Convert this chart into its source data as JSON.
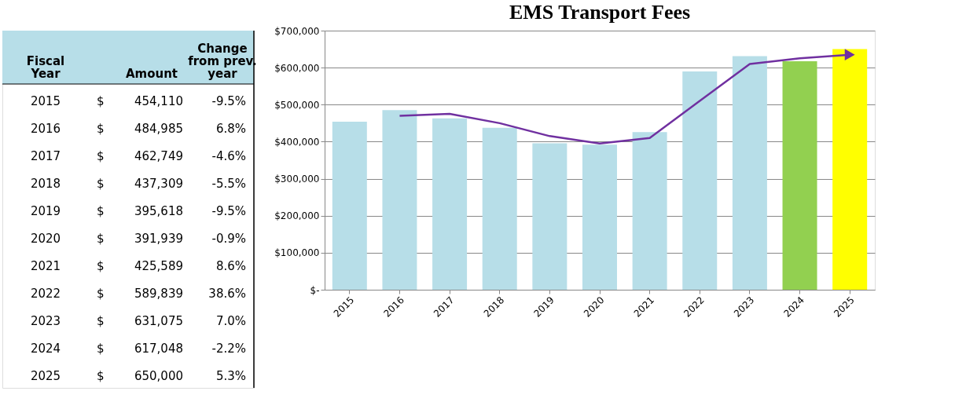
{
  "chart_data": {
    "type": "bar",
    "title": "EMS Transport Fees",
    "categories": [
      "2015",
      "2016",
      "2017",
      "2018",
      "2019",
      "2020",
      "2021",
      "2022",
      "2023",
      "2024",
      "2025"
    ],
    "series": [
      {
        "type": "bar",
        "colors": [
          "#b7dee8",
          "#b7dee8",
          "#b7dee8",
          "#b7dee8",
          "#b7dee8",
          "#b7dee8",
          "#b7dee8",
          "#b7dee8",
          "#b7dee8",
          "#92d050",
          "#ffff00"
        ],
        "values": [
          454110,
          484985,
          462749,
          437309,
          395618,
          391939,
          425589,
          589839,
          631075,
          617048,
          650000
        ],
        "value_labels": [
          "$ 454,110",
          "$ 484,985",
          "$ 462,749",
          "$ 437,309",
          "$ 395,618",
          "$ 391,939",
          "$ 425,589",
          "$ 589,839",
          "$ 631,075",
          "$ 617,048",
          "$ 650,000"
        ]
      },
      {
        "type": "line",
        "color": "#7030a0",
        "values": [
          null,
          470000,
          475000,
          450000,
          415000,
          395000,
          410000,
          510000,
          610000,
          625000,
          635000
        ]
      }
    ],
    "ylim": [
      0,
      700000
    ],
    "yticks": [
      {
        "value": 0,
        "label": "$-"
      },
      {
        "value": 100000,
        "label": "$100,000"
      },
      {
        "value": 200000,
        "label": "$200,000"
      },
      {
        "value": 300000,
        "label": "$300,000"
      },
      {
        "value": 400000,
        "label": "$400,000"
      },
      {
        "value": 500000,
        "label": "$500,000"
      },
      {
        "value": 600000,
        "label": "$600,000"
      },
      {
        "value": 700000,
        "label": "$700,000"
      }
    ],
    "grid": "y",
    "annotations": [
      "Fiscal Year",
      "Amount",
      "Change from prev. year",
      "-9.5%",
      "6.8%",
      "-4.6%",
      "-5.5%",
      "-9.5%",
      "-0.9%",
      "8.6%",
      "38.6%",
      "7.0%",
      "-2.2%",
      "5.3%"
    ]
  }
}
